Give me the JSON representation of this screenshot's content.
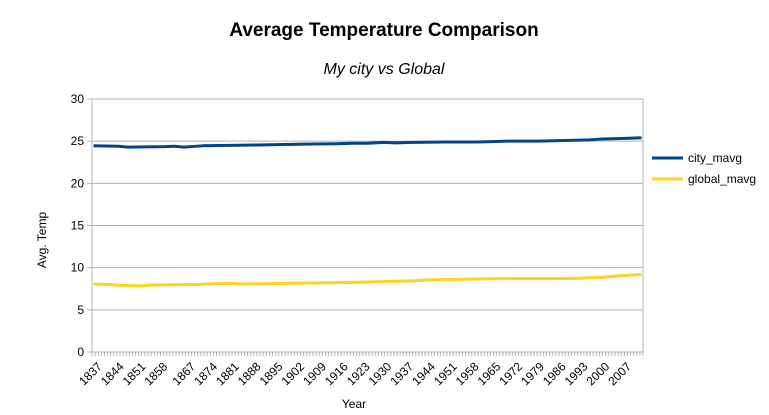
{
  "chart_data": {
    "type": "line",
    "title": "Average Temperature Comparison",
    "subtitle": "My city vs Global",
    "xlabel": "Year",
    "ylabel": "Avg. Temp",
    "ylim": [
      0,
      30
    ],
    "yticks": [
      0,
      5,
      10,
      15,
      20,
      25,
      30
    ],
    "x_start": 1837,
    "x_end": 2013,
    "x_tick_labels": [
      "1837",
      "1844",
      "1851",
      "1858",
      "1867",
      "1874",
      "1881",
      "1888",
      "1895",
      "1902",
      "1909",
      "1916",
      "1923",
      "1930",
      "1937",
      "1944",
      "1951",
      "1958",
      "1965",
      "1972",
      "1979",
      "1986",
      "1993",
      "2000",
      "2007"
    ],
    "grid": true,
    "legend_position": "right",
    "series": [
      {
        "name": "city_mavg",
        "color": "#004586",
        "points": [
          [
            1837,
            24.45
          ],
          [
            1845,
            24.4
          ],
          [
            1848,
            24.3
          ],
          [
            1860,
            24.35
          ],
          [
            1863,
            24.4
          ],
          [
            1866,
            24.3
          ],
          [
            1872,
            24.45
          ],
          [
            1880,
            24.5
          ],
          [
            1890,
            24.55
          ],
          [
            1898,
            24.6
          ],
          [
            1905,
            24.65
          ],
          [
            1915,
            24.7
          ],
          [
            1920,
            24.75
          ],
          [
            1925,
            24.75
          ],
          [
            1930,
            24.85
          ],
          [
            1934,
            24.8
          ],
          [
            1940,
            24.85
          ],
          [
            1950,
            24.9
          ],
          [
            1960,
            24.9
          ],
          [
            1965,
            24.95
          ],
          [
            1970,
            25.0
          ],
          [
            1980,
            25.0
          ],
          [
            1985,
            25.05
          ],
          [
            1990,
            25.1
          ],
          [
            1996,
            25.15
          ],
          [
            2000,
            25.25
          ],
          [
            2005,
            25.3
          ],
          [
            2009,
            25.35
          ],
          [
            2013,
            25.4
          ]
        ]
      },
      {
        "name": "global_mavg",
        "color": "#ffd320",
        "points": [
          [
            1837,
            8.05
          ],
          [
            1842,
            8.0
          ],
          [
            1846,
            7.9
          ],
          [
            1852,
            7.85
          ],
          [
            1856,
            7.95
          ],
          [
            1870,
            8.0
          ],
          [
            1876,
            8.1
          ],
          [
            1882,
            8.15
          ],
          [
            1884,
            8.05
          ],
          [
            1892,
            8.1
          ],
          [
            1900,
            8.15
          ],
          [
            1910,
            8.2
          ],
          [
            1920,
            8.25
          ],
          [
            1925,
            8.3
          ],
          [
            1930,
            8.35
          ],
          [
            1940,
            8.45
          ],
          [
            1945,
            8.55
          ],
          [
            1960,
            8.65
          ],
          [
            1970,
            8.7
          ],
          [
            1985,
            8.7
          ],
          [
            1993,
            8.75
          ],
          [
            2000,
            8.85
          ],
          [
            2005,
            9.0
          ],
          [
            2009,
            9.1
          ],
          [
            2013,
            9.2
          ]
        ]
      }
    ]
  }
}
